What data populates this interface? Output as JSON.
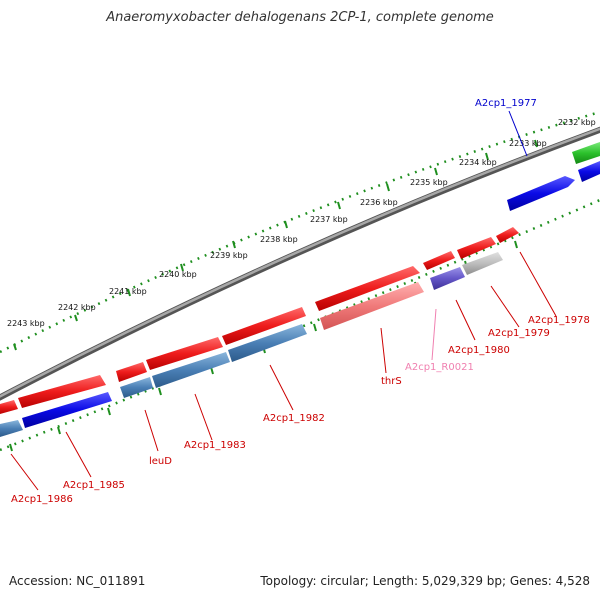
{
  "title": "Anaeromyxobacter dehalogenans 2CP-1, complete genome",
  "footer": {
    "accession": "Accession: NC_011891",
    "summary": "Topology: circular; Length: 5,029,329 bp; Genes: 4,528"
  },
  "scale_labels": [
    "2232 kbp",
    "2233 kbp",
    "2234 kbp",
    "2235 kbp",
    "2236 kbp",
    "2237 kbp",
    "2238 kbp",
    "2239 kbp",
    "2240 kbp",
    "2241 kbp",
    "2242 kbp",
    "2243 kbp"
  ],
  "gene_labels": [
    {
      "text": "A2cp1_1977",
      "color": "#0000cc"
    },
    {
      "text": "A2cp1_1978",
      "color": "#cc0000"
    },
    {
      "text": "A2cp1_1979",
      "color": "#cc0000"
    },
    {
      "text": "A2cp1_1980",
      "color": "#cc0000"
    },
    {
      "text": "A2cp1_R0021",
      "color": "#f080b0"
    },
    {
      "text": "thrS",
      "color": "#cc0000"
    },
    {
      "text": "A2cp1_1982",
      "color": "#cc0000"
    },
    {
      "text": "A2cp1_1983",
      "color": "#cc0000"
    },
    {
      "text": "leuD",
      "color": "#cc0000"
    },
    {
      "text": "A2cp1_1985",
      "color": "#cc0000"
    },
    {
      "text": "A2cp1_1986",
      "color": "#cc0000"
    }
  ],
  "colors": {
    "forward_strand": "#ee1c1c",
    "reverse_strand": "#4a7fb5",
    "backbone": "#888888",
    "scale_dots": "#1f8f1f"
  }
}
